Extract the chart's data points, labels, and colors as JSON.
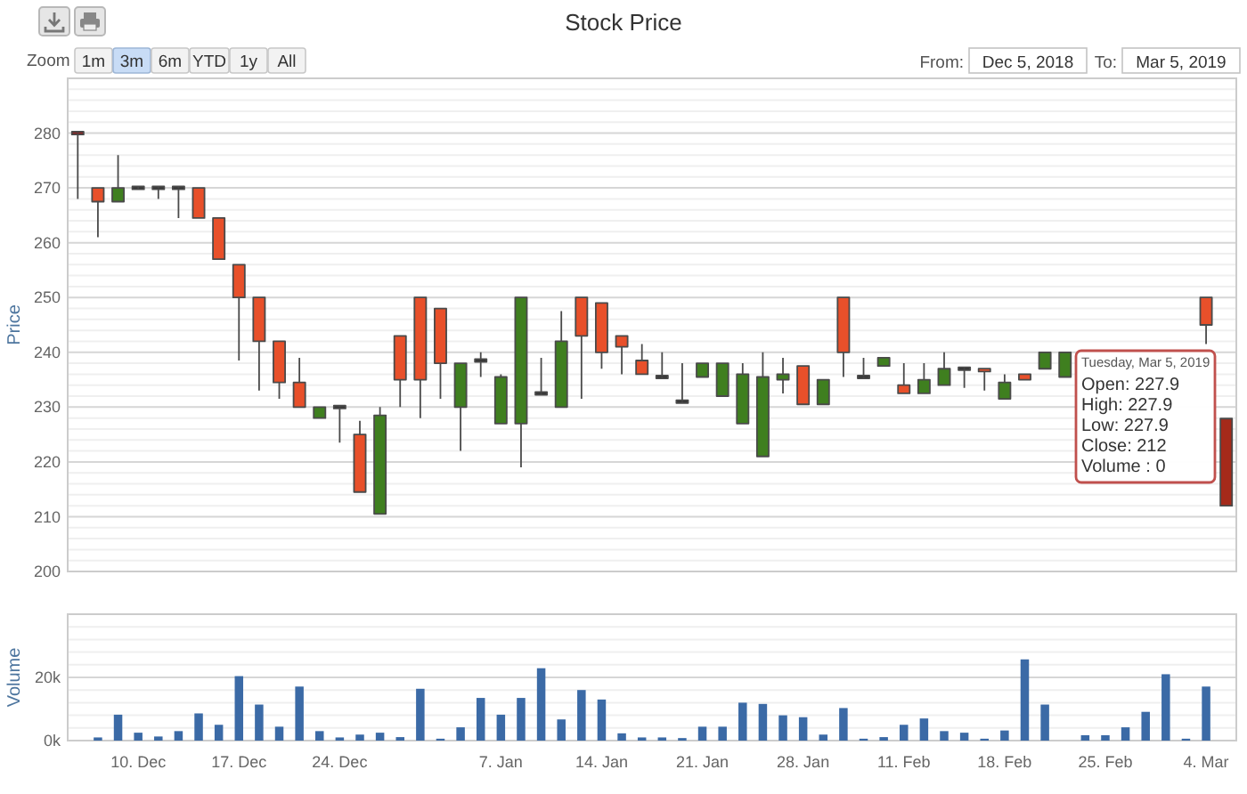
{
  "chart_data": [
    {
      "type": "candlestick",
      "title": "Stock Price",
      "ylabel": "Price",
      "categories": [
        null,
        null,
        null,
        null,
        null,
        null,
        null,
        null,
        null,
        null,
        null,
        null,
        null,
        null,
        null,
        null,
        null,
        null,
        null,
        null,
        null,
        null,
        null,
        null,
        null,
        null,
        null,
        null,
        null,
        null,
        null,
        null,
        null,
        null,
        null,
        null,
        null,
        null,
        null,
        null,
        null,
        null,
        null,
        null,
        null,
        null,
        null,
        null,
        null,
        null,
        null,
        null,
        null,
        null,
        null,
        null,
        null,
        null
      ],
      "ohlc": [
        [
          280,
          280,
          268,
          280
        ],
        [
          270,
          270,
          261,
          267.5
        ],
        [
          267.5,
          276,
          267.5,
          270
        ],
        [
          270,
          270,
          270,
          270
        ],
        [
          270,
          270,
          268,
          270
        ],
        [
          270,
          270,
          264.5,
          270
        ],
        [
          270,
          270,
          264.5,
          264.5
        ],
        [
          264.5,
          264.5,
          257,
          257
        ],
        [
          256,
          256,
          238.5,
          250
        ],
        [
          250,
          250,
          233,
          242
        ],
        [
          242,
          242,
          231.5,
          234.5
        ],
        [
          234.5,
          239,
          230,
          230
        ],
        [
          228,
          230,
          228,
          230
        ],
        [
          230,
          230,
          223.5,
          230
        ],
        [
          225,
          227.5,
          214.5,
          214.5
        ],
        [
          210.5,
          230,
          210.5,
          228.5
        ],
        [
          243,
          243,
          230,
          235
        ],
        [
          250,
          250,
          228,
          235
        ],
        [
          248,
          248,
          231.5,
          238
        ],
        [
          230,
          238,
          222,
          238
        ],
        [
          238.5,
          240,
          235.5,
          238.5
        ],
        [
          227,
          236,
          227,
          235.5
        ],
        [
          227,
          250,
          219,
          250
        ],
        [
          232.5,
          239,
          232.5,
          232.5
        ],
        [
          230,
          247.5,
          230,
          242
        ],
        [
          250,
          250,
          231.5,
          243
        ],
        [
          249,
          249,
          237,
          240
        ],
        [
          243,
          243,
          236,
          241
        ],
        [
          238.5,
          241.5,
          236,
          236
        ],
        [
          235.5,
          240,
          235.5,
          235.5
        ],
        [
          231,
          238,
          231,
          231
        ],
        [
          235.5,
          238,
          235.5,
          238
        ],
        [
          232,
          238,
          232,
          238
        ],
        [
          227,
          238,
          227,
          236
        ],
        [
          221,
          240,
          221,
          235.5
        ],
        [
          235,
          239,
          232.5,
          236
        ],
        [
          237.5,
          237.5,
          230.5,
          230.5
        ],
        [
          230.5,
          235,
          230.5,
          235
        ],
        [
          250,
          250,
          235.5,
          240
        ],
        [
          235.5,
          239,
          235.5,
          235.5
        ],
        [
          237.5,
          239,
          237.5,
          239
        ],
        [
          234,
          238,
          232.5,
          232.5
        ],
        [
          232.5,
          238,
          232.5,
          235
        ],
        [
          234,
          240,
          234,
          237
        ],
        [
          237,
          237,
          233.5,
          237
        ],
        [
          237,
          237,
          233,
          236.5
        ],
        [
          231.5,
          236,
          231.5,
          234.5
        ],
        [
          236,
          236,
          235,
          235
        ],
        [
          237,
          240,
          237,
          240
        ],
        [
          235.5,
          240,
          235.5,
          240
        ],
        null,
        null,
        null,
        null,
        null,
        null,
        [
          250,
          250,
          241.5,
          245
        ],
        [
          227.9,
          227.9,
          212,
          212
        ]
      ],
      "colors": [
        "#8b2020",
        "#e8502a",
        "#3f7f1f",
        "#333333",
        "#333333",
        "#333333",
        "#e8502a",
        "#e8502a",
        "#e8502a",
        "#e8502a",
        "#e8502a",
        "#e8502a",
        "#3f7f1f",
        "#333333",
        "#e8502a",
        "#3f7f1f",
        "#e8502a",
        "#e8502a",
        "#e8502a",
        "#3f7f1f",
        "#333333",
        "#3f7f1f",
        "#3f7f1f",
        "#333333",
        "#3f7f1f",
        "#e8502a",
        "#e8502a",
        "#e8502a",
        "#e8502a",
        "#333333",
        "#333333",
        "#3f7f1f",
        "#3f7f1f",
        "#3f7f1f",
        "#3f7f1f",
        "#3f7f1f",
        "#e8502a",
        "#3f7f1f",
        "#e8502a",
        "#333333",
        "#3f7f1f",
        "#e8502a",
        "#3f7f1f",
        "#3f7f1f",
        "#333333",
        "#e8502a",
        "#3f7f1f",
        "#e8502a",
        "#3f7f1f",
        "#3f7f1f",
        null,
        null,
        null,
        null,
        null,
        null,
        "#e8502a",
        "#a52a1a"
      ],
      "ylim": [
        200,
        290
      ],
      "yticks": [
        200,
        210,
        220,
        230,
        240,
        250,
        260,
        270,
        280
      ],
      "grid": true,
      "tick_labels": "y",
      "annotations": [
        "Zoom",
        "1m",
        "3m",
        "6m",
        "YTD",
        "1y",
        "All",
        "From:",
        "Dec 5, 2018",
        "To:",
        "Mar 5, 2019",
        "Tuesday, Mar 5, 2019\nOpen: 227.9\nHigh: 227.9\nLow: 227.9\nClose: 212\nVolume : 0"
      ]
    },
    {
      "type": "bar",
      "ylabel": "Volume",
      "categories": [
        null,
        null,
        null,
        "10. Dec",
        null,
        null,
        null,
        null,
        "17. Dec",
        null,
        null,
        null,
        null,
        "24. Dec",
        null,
        null,
        null,
        null,
        null,
        null,
        null,
        "7. Jan",
        null,
        null,
        null,
        null,
        "14. Jan",
        null,
        null,
        null,
        null,
        "21. Jan",
        null,
        null,
        null,
        null,
        "28. Jan",
        null,
        null,
        null,
        null,
        "11. Feb",
        null,
        null,
        null,
        null,
        "18. Feb",
        null,
        null,
        null,
        null,
        "25. Feb",
        null,
        null,
        null,
        null,
        "4. Mar",
        null
      ],
      "values": [
        0,
        1000,
        8200,
        2500,
        1300,
        3000,
        8600,
        5000,
        20400,
        11400,
        4400,
        17100,
        3000,
        1000,
        1900,
        2500,
        1100,
        16400,
        600,
        4200,
        13500,
        8200,
        13500,
        22900,
        6700,
        16000,
        13000,
        2300,
        1000,
        1000,
        800,
        4400,
        4400,
        12000,
        11600,
        8000,
        7400,
        1900,
        10300,
        600,
        1100,
        5000,
        7000,
        3000,
        2500,
        600,
        3200,
        25700,
        11400,
        0,
        1700,
        1700,
        4200,
        9100,
        21000,
        600,
        17100,
        0
      ],
      "color": "#3b6aa6",
      "ylim": [
        0,
        40000
      ],
      "yticks": [
        {
          "value": 0,
          "label": "0k"
        },
        {
          "value": 20000,
          "label": "20k"
        }
      ],
      "grid": true
    }
  ]
}
